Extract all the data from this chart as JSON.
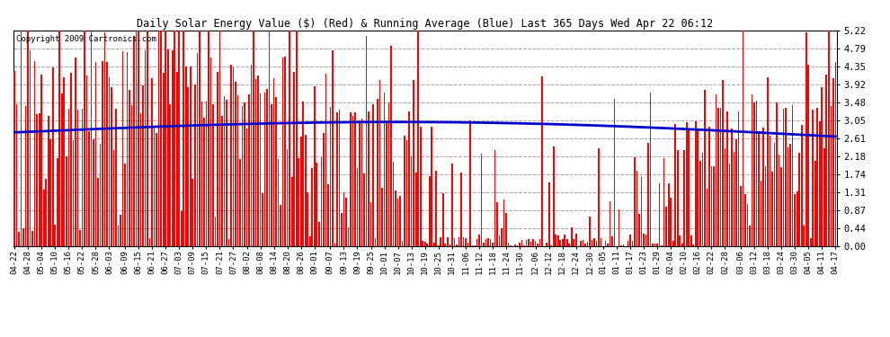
{
  "title": "Daily Solar Energy Value ($) (Red) & Running Average (Blue) Last 365 Days Wed Apr 22 06:12",
  "copyright": "Copyright 2009 Cartronics.com",
  "ylim": [
    0.0,
    5.22
  ],
  "yticks": [
    0.0,
    0.44,
    0.87,
    1.31,
    1.74,
    2.18,
    2.61,
    3.05,
    3.48,
    3.92,
    4.35,
    4.79,
    5.22
  ],
  "bar_color": "#ff0000",
  "avg_color": "#0000cc",
  "bg_color": "#ffffff",
  "grid_color": "#999999",
  "x_labels": [
    "04-22",
    "04-28",
    "05-04",
    "05-10",
    "05-16",
    "05-22",
    "05-28",
    "06-03",
    "06-09",
    "06-15",
    "06-21",
    "06-27",
    "07-03",
    "07-09",
    "07-15",
    "07-21",
    "07-27",
    "08-02",
    "08-08",
    "08-14",
    "08-20",
    "08-26",
    "09-01",
    "09-07",
    "09-13",
    "09-19",
    "09-25",
    "10-01",
    "10-07",
    "10-13",
    "10-19",
    "10-25",
    "10-31",
    "11-06",
    "11-12",
    "11-18",
    "11-24",
    "11-30",
    "12-06",
    "12-12",
    "12-18",
    "12-24",
    "12-30",
    "01-05",
    "01-11",
    "01-17",
    "01-23",
    "01-29",
    "02-04",
    "02-10",
    "02-16",
    "02-22",
    "02-28",
    "03-06",
    "03-12",
    "03-18",
    "03-24",
    "03-30",
    "04-05",
    "04-11",
    "04-17"
  ],
  "num_bars": 365,
  "seed": 42
}
